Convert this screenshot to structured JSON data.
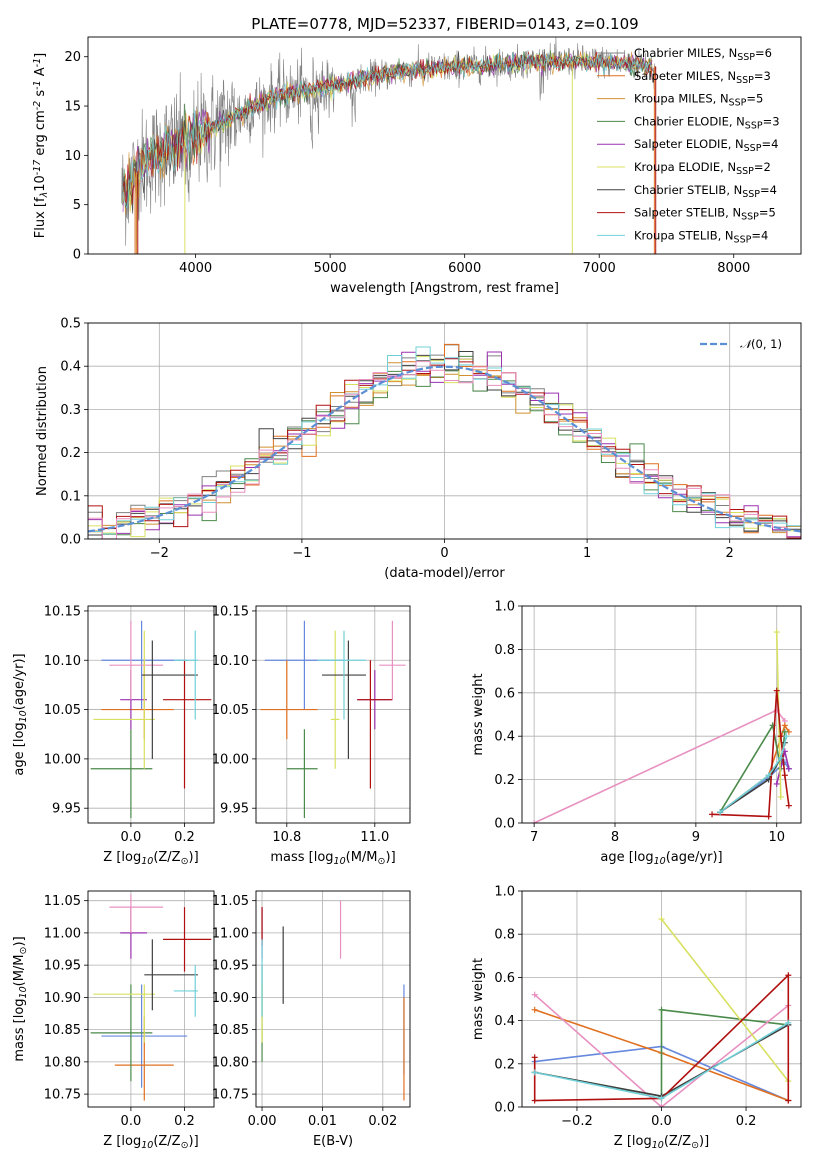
{
  "figure_title": "PLATE=0778, MJD=52337, FIBERID=0143, z=0.109",
  "legend_main": {
    "labels": [
      "Chabrier MILES, N$_{SSP}$=6",
      "Salpeter MILES, N$_{SSP}$=3",
      "Kroupa MILES, N$_{SSP}$=5",
      "Chabrier ELODIE, N$_{SSP}$=3",
      "Salpeter ELODIE, N$_{SSP}$=4",
      "Kroupa ELODIE, N$_{SSP}$=2",
      "Chabrier STELIB, N$_{SSP}$=4",
      "Salpeter STELIB, N$_{SSP}$=5",
      "Kroupa STELIB, N$_{SSP}$=4"
    ],
    "display": [
      [
        "Chabrier MILES, N",
        "SSP",
        "=6"
      ],
      [
        "Salpeter MILES, N",
        "SSP",
        "=3"
      ],
      [
        "Kroupa MILES, N",
        "SSP",
        "=5"
      ],
      [
        "Chabrier ELODIE, N",
        "SSP",
        "=3"
      ],
      [
        "Salpeter ELODIE, N",
        "SSP",
        "=4"
      ],
      [
        "Kroupa ELODIE, N",
        "SSP",
        "=2"
      ],
      [
        "Chabrier STELIB, N",
        "SSP",
        "=4"
      ],
      [
        "Salpeter STELIB, N",
        "SSP",
        "=5"
      ],
      [
        "Kroupa STELIB, N",
        "SSP",
        "=4"
      ]
    ],
    "colors": [
      "#808080",
      "#e07020",
      "#d09030",
      "#4a8a4a",
      "#9b30b0",
      "#d8e060",
      "#404040",
      "#b01010",
      "#70d0d8"
    ]
  },
  "chart_data": [
    {
      "id": "spectrum",
      "type": "line",
      "xlabel": "wavelength [Angstrom, rest frame]",
      "ylabel": "Flux [f$_\\lambda$10$^{-17}$ erg cm$^{-2}$ s$^{-1}$ A$^{-1}$]",
      "xlim": [
        3200,
        8500
      ],
      "ylim": [
        0,
        22
      ],
      "xticks": [
        4000,
        5000,
        6000,
        7000,
        8000
      ],
      "yticks": [
        0,
        5,
        10,
        15,
        20
      ],
      "continuum": {
        "x": [
          3450,
          3600,
          3800,
          4000,
          4300,
          4600,
          5000,
          5500,
          6000,
          6500,
          7000,
          7300,
          7420
        ],
        "y": [
          6,
          9,
          11,
          12,
          14,
          16,
          17,
          18.5,
          19,
          19.5,
          19.5,
          19.2,
          19
        ]
      },
      "data_range": [
        3450,
        7420
      ],
      "model_drops": [
        [
          1,
          3550
        ],
        [
          2,
          3560
        ],
        [
          5,
          3920
        ],
        [
          5,
          6800
        ],
        [
          7,
          3570
        ],
        [
          1,
          7410
        ],
        [
          7,
          7420
        ]
      ]
    },
    {
      "id": "residual_hist",
      "type": "line",
      "xlabel": "(data-model)/error",
      "ylabel": "Normed distribution",
      "xlim": [
        -2.5,
        2.5
      ],
      "ylim": [
        0,
        0.5
      ],
      "xticks": [
        -2,
        -1,
        0,
        1,
        2
      ],
      "yticks": [
        0.0,
        0.1,
        0.2,
        0.3,
        0.4,
        0.5
      ],
      "legend": "N(0,1)",
      "bin_width": 0.1,
      "normal": {
        "mu": 0,
        "sigma": 1
      }
    },
    {
      "id": "age_vs_Z",
      "type": "scatter",
      "xlabel": "Z [log$_{10}$(Z/Z$_\\odot$)]",
      "ylabel": "age  [log$_{10}$(age/yr)]",
      "xlim": [
        -0.16,
        0.31
      ],
      "ylim": [
        9.935,
        10.155
      ],
      "xticks": [
        0.0,
        0.2
      ],
      "yticks": [
        9.95,
        10.0,
        10.05,
        10.1,
        10.15
      ],
      "points": [
        {
          "c": "#6688dd",
          "x": 0.04,
          "y": 10.1,
          "xe": [
            -0.11,
            0.21
          ],
          "ye": [
            10.05,
            10.14
          ]
        },
        {
          "c": "#e07020",
          "x": 0.05,
          "y": 10.05,
          "xe": [
            -0.11,
            0.16
          ],
          "ye": [
            10.02,
            10.1
          ]
        },
        {
          "c": "#4a8a4a",
          "x": 0.0,
          "y": 9.99,
          "xe": [
            -0.15,
            0.08
          ],
          "ye": [
            9.94,
            10.03
          ]
        },
        {
          "c": "#9b30b0",
          "x": 0.0,
          "y": 10.06,
          "xe": [
            -0.04,
            0.06
          ],
          "ye": [
            10.03,
            10.09
          ]
        },
        {
          "c": "#b01010",
          "x": 0.2,
          "y": 10.06,
          "xe": [
            0.12,
            0.3
          ],
          "ye": [
            9.97,
            10.1
          ]
        },
        {
          "c": "#e890c0",
          "x": 0.0,
          "y": 10.095,
          "xe": [
            -0.08,
            0.12
          ],
          "ye": [
            10.06,
            10.14
          ]
        },
        {
          "c": "#d8e060",
          "x": 0.05,
          "y": 10.04,
          "xe": [
            -0.14,
            0.09
          ],
          "ye": [
            9.99,
            10.13
          ]
        },
        {
          "c": "#404040",
          "x": 0.08,
          "y": 10.085,
          "xe": [
            0.04,
            0.25
          ],
          "ye": [
            10.0,
            10.12
          ]
        },
        {
          "c": "#70d0d8",
          "x": 0.24,
          "y": 10.1,
          "xe": [
            0.16,
            0.25
          ],
          "ye": [
            10.04,
            10.13
          ]
        }
      ]
    },
    {
      "id": "age_vs_mass",
      "type": "scatter",
      "xlabel": "mass [log$_{10}$(M/M$_\\odot$)]",
      "ylabel": "",
      "xlim": [
        10.73,
        11.08
      ],
      "ylim": [
        9.935,
        10.155
      ],
      "xticks": [
        10.8,
        11.0
      ],
      "yticks": [
        9.95,
        10.0,
        10.05,
        10.1,
        10.15
      ],
      "points": [
        {
          "c": "#6688dd",
          "x": 10.84,
          "y": 10.1,
          "xe": [
            10.75,
            10.93
          ],
          "ye": [
            10.05,
            10.14
          ]
        },
        {
          "c": "#e07020",
          "x": 10.8,
          "y": 10.05,
          "xe": [
            10.74,
            10.87
          ],
          "ye": [
            10.02,
            10.1
          ]
        },
        {
          "c": "#4a8a4a",
          "x": 10.84,
          "y": 9.99,
          "xe": [
            10.8,
            10.87
          ],
          "ye": [
            9.94,
            10.03
          ]
        },
        {
          "c": "#9b30b0",
          "x": 11.0,
          "y": 10.06,
          "xe": [
            10.96,
            11.04
          ],
          "ye": [
            10.03,
            10.09
          ]
        },
        {
          "c": "#b01010",
          "x": 10.99,
          "y": 10.06,
          "xe": [
            10.96,
            11.04
          ],
          "ye": [
            9.97,
            10.1
          ]
        },
        {
          "c": "#e890c0",
          "x": 11.04,
          "y": 10.095,
          "xe": [
            11.01,
            11.07
          ],
          "ye": [
            10.06,
            10.14
          ]
        },
        {
          "c": "#d8e060",
          "x": 10.91,
          "y": 10.04,
          "xe": [
            10.9,
            10.92
          ],
          "ye": [
            9.99,
            10.13
          ]
        },
        {
          "c": "#404040",
          "x": 10.94,
          "y": 10.085,
          "xe": [
            10.88,
            10.98
          ],
          "ye": [
            10.0,
            10.12
          ]
        },
        {
          "c": "#70d0d8",
          "x": 10.93,
          "y": 10.1,
          "xe": [
            10.87,
            10.98
          ],
          "ye": [
            10.04,
            10.13
          ]
        }
      ]
    },
    {
      "id": "weight_vs_age",
      "type": "line",
      "xlabel": "age  [log$_{10}$(age/yr)]",
      "ylabel": "mass weight",
      "xlim": [
        6.85,
        10.3
      ],
      "ylim": [
        0,
        1
      ],
      "xticks": [
        7,
        8,
        9,
        10
      ],
      "yticks": [
        0.0,
        0.2,
        0.4,
        0.6,
        0.8,
        1.0
      ],
      "series": [
        {
          "c": "#e890c0",
          "x": [
            7.0,
            10.0,
            10.1
          ],
          "y": [
            0.0,
            0.52,
            0.47
          ]
        },
        {
          "c": "#6688dd",
          "x": [
            9.3,
            9.9,
            10.1,
            10.15
          ],
          "y": [
            0.05,
            0.21,
            0.28,
            0.25
          ]
        },
        {
          "c": "#e07020",
          "x": [
            9.3,
            9.9,
            10.1,
            10.15
          ],
          "y": [
            0.05,
            0.22,
            0.45,
            0.42
          ]
        },
        {
          "c": "#4a8a4a",
          "x": [
            9.3,
            9.95,
            10.05,
            10.1
          ],
          "y": [
            0.05,
            0.45,
            0.25,
            0.42
          ]
        },
        {
          "c": "#9b30b0",
          "x": [
            10.0,
            10.1,
            10.15
          ],
          "y": [
            0.18,
            0.33,
            0.25
          ]
        },
        {
          "c": "#d8e060",
          "x": [
            10.0,
            10.05
          ],
          "y": [
            0.88,
            0.12
          ]
        },
        {
          "c": "#404040",
          "x": [
            9.3,
            9.9,
            10.05,
            10.1
          ],
          "y": [
            0.05,
            0.2,
            0.3,
            0.37
          ]
        },
        {
          "c": "#b01010",
          "x": [
            9.2,
            9.9,
            10.0,
            10.05,
            10.1,
            10.15
          ],
          "y": [
            0.04,
            0.03,
            0.61,
            0.4,
            0.22,
            0.08
          ]
        },
        {
          "c": "#70d0d8",
          "x": [
            9.3,
            9.9,
            10.05,
            10.12
          ],
          "y": [
            0.05,
            0.22,
            0.3,
            0.4
          ]
        }
      ]
    },
    {
      "id": "mass_vs_Z",
      "type": "scatter",
      "xlabel": "Z [log$_{10}$(Z/Z$_\\odot$)]",
      "ylabel": "mass [log$_{10}$(M/M$_\\odot$)]",
      "xlim": [
        -0.16,
        0.31
      ],
      "ylim": [
        10.73,
        11.065
      ],
      "xticks": [
        0.0,
        0.2
      ],
      "yticks": [
        10.75,
        10.8,
        10.85,
        10.9,
        10.95,
        11.0,
        11.05
      ],
      "points": [
        {
          "c": "#6688dd",
          "x": 0.04,
          "y": 10.84,
          "xe": [
            -0.11,
            0.21
          ],
          "ye": [
            10.76,
            10.92
          ]
        },
        {
          "c": "#e07020",
          "x": 0.05,
          "y": 10.795,
          "xe": [
            -0.06,
            0.16
          ],
          "ye": [
            10.74,
            10.87
          ]
        },
        {
          "c": "#4a8a4a",
          "x": 0.0,
          "y": 10.845,
          "xe": [
            -0.15,
            0.08
          ],
          "ye": [
            10.77,
            10.92
          ]
        },
        {
          "c": "#9b30b0",
          "x": 0.0,
          "y": 11.0,
          "xe": [
            -0.04,
            0.06
          ],
          "ye": [
            10.96,
            11.04
          ]
        },
        {
          "c": "#b01010",
          "x": 0.2,
          "y": 10.99,
          "xe": [
            0.12,
            0.3
          ],
          "ye": [
            10.94,
            11.04
          ]
        },
        {
          "c": "#e890c0",
          "x": 0.0,
          "y": 11.04,
          "xe": [
            -0.08,
            0.12
          ],
          "ye": [
            11.0,
            11.06
          ]
        },
        {
          "c": "#d8e060",
          "x": 0.05,
          "y": 10.905,
          "xe": [
            -0.14,
            0.09
          ],
          "ye": [
            10.83,
            10.92
          ]
        },
        {
          "c": "#404040",
          "x": 0.08,
          "y": 10.935,
          "xe": [
            0.05,
            0.25
          ],
          "ye": [
            10.88,
            10.99
          ]
        },
        {
          "c": "#70d0d8",
          "x": 0.24,
          "y": 10.91,
          "xe": [
            0.16,
            0.25
          ],
          "ye": [
            10.87,
            10.95
          ]
        }
      ]
    },
    {
      "id": "mass_vs_ebv",
      "type": "scatter",
      "xlabel": "E(B-V)",
      "ylabel": "",
      "xlim": [
        -0.001,
        0.0245
      ],
      "ylim": [
        10.73,
        11.065
      ],
      "xticks": [
        0.0,
        0.01,
        0.02
      ],
      "yticks": [
        10.75,
        10.8,
        10.85,
        10.9,
        10.95,
        11.0,
        11.05
      ],
      "points": [
        {
          "c": "#6688dd",
          "x": 0.0235,
          "y": 10.85,
          "xe": [
            0.0235,
            0.0235
          ],
          "ye": [
            10.78,
            10.92
          ]
        },
        {
          "c": "#e07020",
          "x": 0.0235,
          "y": 10.82,
          "xe": [
            0.0235,
            0.0235
          ],
          "ye": [
            10.74,
            10.9
          ]
        },
        {
          "c": "#4a8a4a",
          "x": 0.0,
          "y": 10.87,
          "xe": [
            0.0,
            0.0
          ],
          "ye": [
            10.8,
            10.95
          ]
        },
        {
          "c": "#9b30b0",
          "x": 0.0,
          "y": 11.0,
          "xe": [
            0.0,
            0.0
          ],
          "ye": [
            10.96,
            11.04
          ]
        },
        {
          "c": "#b01010",
          "x": 0.0,
          "y": 11.0,
          "xe": [
            0.0,
            0.0
          ],
          "ye": [
            10.98,
            11.04
          ]
        },
        {
          "c": "#e890c0",
          "x": 0.013,
          "y": 11.0,
          "xe": [
            0.013,
            0.013
          ],
          "ye": [
            10.96,
            11.05
          ]
        },
        {
          "c": "#d8e060",
          "x": 0.0,
          "y": 10.86,
          "xe": [
            0.0,
            0.0
          ],
          "ye": [
            10.83,
            10.92
          ]
        },
        {
          "c": "#404040",
          "x": 0.0035,
          "y": 10.95,
          "xe": [
            0.0035,
            0.0035
          ],
          "ye": [
            10.89,
            11.01
          ]
        },
        {
          "c": "#70d0d8",
          "x": 0.0,
          "y": 10.93,
          "xe": [
            0.0,
            0.0
          ],
          "ye": [
            10.87,
            10.99
          ]
        }
      ]
    },
    {
      "id": "weight_vs_Z",
      "type": "line",
      "xlabel": "Z [log$_{10}$(Z/Z$_\\odot$)]",
      "ylabel": "mass weight",
      "xlim": [
        -0.33,
        0.33
      ],
      "ylim": [
        0,
        1
      ],
      "xticks": [
        -0.2,
        0.0,
        0.2
      ],
      "yticks": [
        0.0,
        0.2,
        0.4,
        0.6,
        0.8,
        1.0
      ],
      "series": [
        {
          "c": "#6688dd",
          "x": [
            -0.3,
            0.0,
            0.3
          ],
          "y": [
            0.21,
            0.28,
            0.03
          ]
        },
        {
          "c": "#e07020",
          "x": [
            -0.3,
            0.0,
            0.3
          ],
          "y": [
            0.45,
            0.25,
            0.03
          ]
        },
        {
          "c": "#4a8a4a",
          "x": [
            -0.3,
            0.0,
            0.0,
            0.3
          ],
          "y": [
            0.16,
            0.05,
            0.45,
            0.38
          ]
        },
        {
          "c": "#e890c0",
          "x": [
            -0.3,
            0.0,
            0.3
          ],
          "y": [
            0.52,
            0.0,
            0.47
          ]
        },
        {
          "c": "#d8e060",
          "x": [
            0.0,
            0.3
          ],
          "y": [
            0.87,
            0.12
          ]
        },
        {
          "c": "#404040",
          "x": [
            -0.3,
            0.0,
            0.3
          ],
          "y": [
            0.16,
            0.05,
            0.38
          ]
        },
        {
          "c": "#b01010",
          "x": [
            -0.3,
            -0.3,
            0.0,
            0.3,
            0.3
          ],
          "y": [
            0.23,
            0.03,
            0.04,
            0.61,
            0.03
          ]
        },
        {
          "c": "#70d0d8",
          "x": [
            -0.3,
            0.0,
            0.3
          ],
          "y": [
            0.16,
            0.04,
            0.39
          ]
        }
      ]
    }
  ]
}
